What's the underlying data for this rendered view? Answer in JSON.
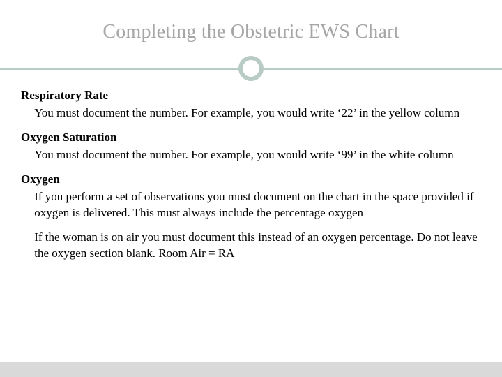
{
  "title": "Completing the Obstetric EWS Chart",
  "accent_color": "#b8cbc4",
  "title_color": "#a6a6a6",
  "text_color": "#000000",
  "background_color": "#ffffff",
  "footer_color": "#d9d9d9",
  "body_fontsize": 17,
  "title_fontsize": 28,
  "sections": [
    {
      "heading": "Respiratory Rate",
      "bullets": [
        "You must document the number. For example, you would write ‘22’ in the yellow column"
      ]
    },
    {
      "heading": "Oxygen Saturation",
      "bullets": [
        "You must document the number. For example, you would write ‘99’ in the white column"
      ]
    },
    {
      "heading": "Oxygen",
      "bullets": [
        "If you perform a set of observations you must document on the chart in the space provided if oxygen is delivered. This must always include the percentage oxygen",
        "If the woman is on air you must document this instead of an oxygen percentage. Do not leave the oxygen section blank. Room Air = RA"
      ]
    }
  ]
}
